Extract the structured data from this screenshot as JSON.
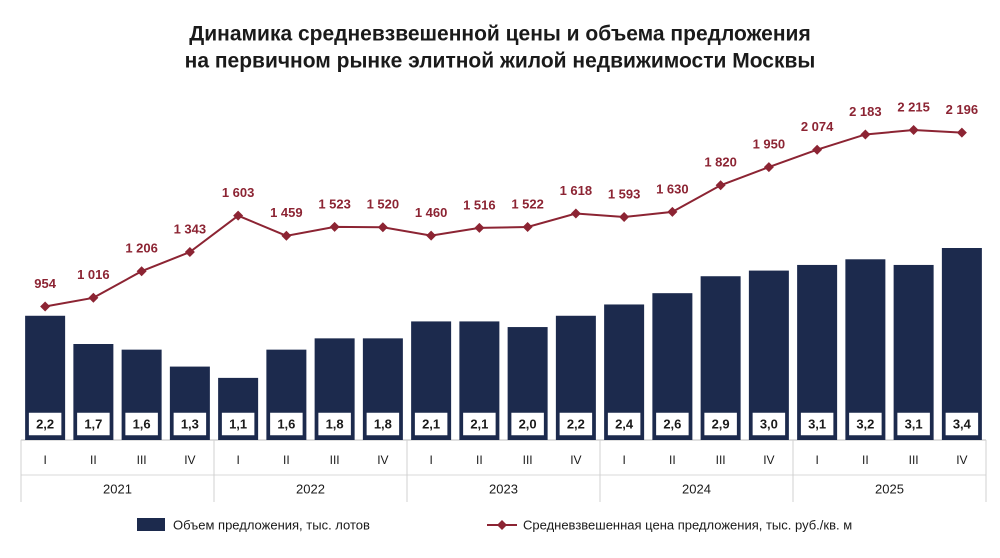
{
  "chart_data": {
    "type": "combo",
    "title": [
      "Динамика средневзвешенной цены и объема предложения",
      "на первичном рынке элитной жилой недвижимости Москвы"
    ],
    "categories": [
      "I",
      "II",
      "III",
      "IV",
      "I",
      "II",
      "III",
      "IV",
      "I",
      "II",
      "III",
      "IV",
      "I",
      "II",
      "III",
      "IV",
      "I",
      "II",
      "III",
      "IV"
    ],
    "groups": [
      "2021",
      "2022",
      "2023",
      "2024",
      "2025"
    ],
    "series": [
      {
        "name": "Объем предложения, тыс. лотов",
        "type": "bar",
        "color": "#1c2a4d",
        "values": [
          2.2,
          1.7,
          1.6,
          1.3,
          1.1,
          1.6,
          1.8,
          1.8,
          2.1,
          2.1,
          2.0,
          2.2,
          2.4,
          2.6,
          2.9,
          3.0,
          3.1,
          3.2,
          3.1,
          3.4
        ],
        "value_labels": [
          "2,2",
          "1,7",
          "1,6",
          "1,3",
          "1,1",
          "1,6",
          "1,8",
          "1,8",
          "2,1",
          "2,1",
          "2,0",
          "2,2",
          "2,4",
          "2,6",
          "2,9",
          "3,0",
          "3,1",
          "3,2",
          "3,1",
          "3,4"
        ]
      },
      {
        "name": "Средневзвешенная цена предложения, тыс. руб./кв. м",
        "type": "line",
        "color": "#8c2433",
        "values": [
          954,
          1016,
          1206,
          1343,
          1603,
          1459,
          1523,
          1520,
          1460,
          1516,
          1522,
          1618,
          1593,
          1630,
          1820,
          1950,
          2074,
          2183,
          2215,
          2196
        ],
        "value_labels": [
          "954",
          "1 016",
          "1 206",
          "1 343",
          "1 603",
          "1 459",
          "1 523",
          "1 520",
          "1 460",
          "1 516",
          "1 522",
          "1 618",
          "1 593",
          "1 630",
          "1 820",
          "1 950",
          "2 074",
          "2 183",
          "2 215",
          "2 196"
        ]
      }
    ]
  }
}
